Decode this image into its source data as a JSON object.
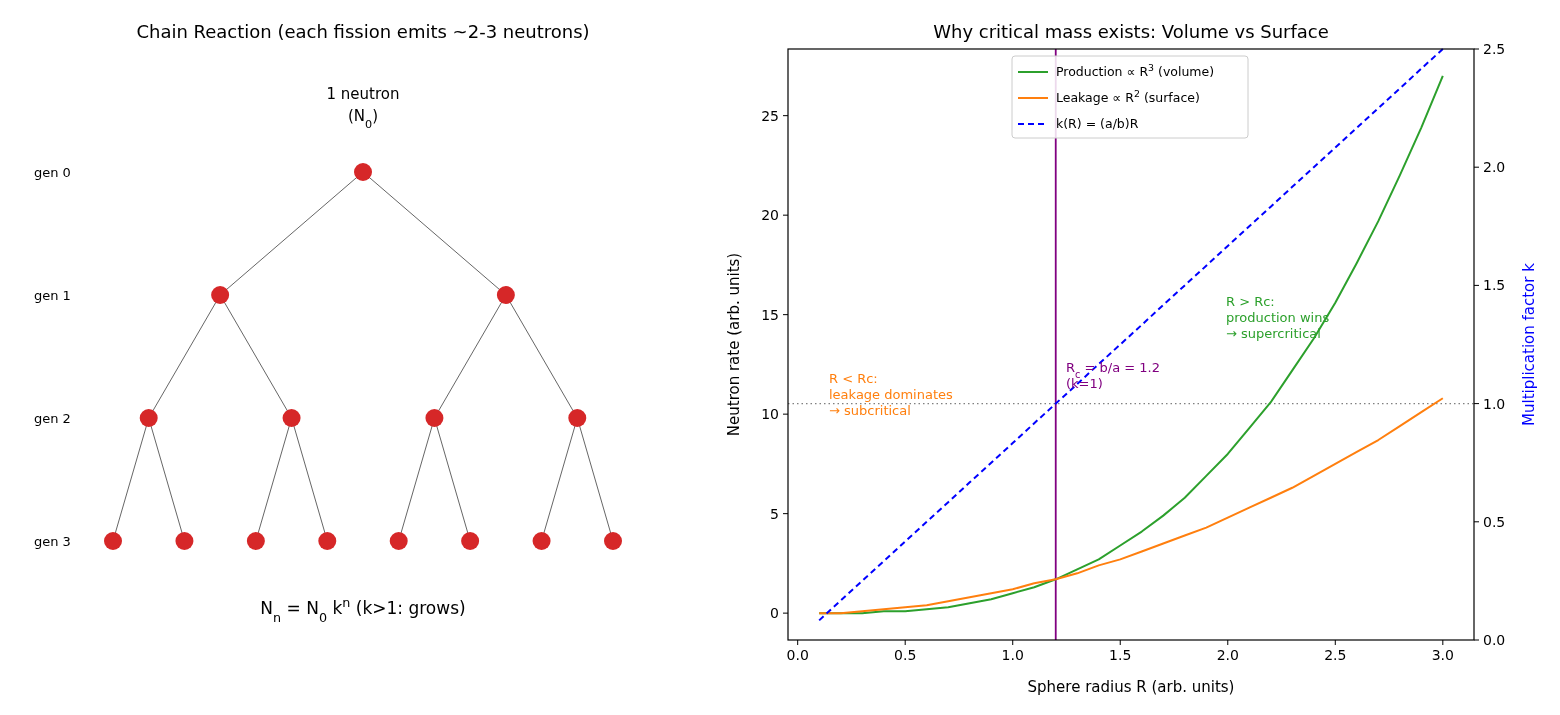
{
  "chart_data": [
    {
      "type": "other",
      "title": "Chain Reaction (each fission emits ~2-3 neutrons)",
      "categories": [
        "gen 0",
        "gen 1",
        "gen 2",
        "gen 3"
      ],
      "annotations": [
        "1 neutron",
        "(N$_{0}$)",
        "N$_{n}$ = N$_{0}$ k$^{n}$  (k>1: grows)"
      ]
    },
    {
      "type": "line",
      "title": "Why critical mass exists: Volume vs Surface",
      "xlabel": "Sphere radius R  (arb. units)",
      "ylabel": "Neutron rate (arb. units)",
      "y2label": "Multiplication factor k",
      "x": [
        0.1,
        0.2,
        0.3,
        0.4,
        0.5,
        0.6,
        0.7,
        0.8,
        0.9,
        1.0,
        1.1,
        1.2,
        1.3,
        1.4,
        1.5,
        1.6,
        1.7,
        1.8,
        1.9,
        2.0,
        2.1,
        2.2,
        2.3,
        2.4,
        2.5,
        2.6,
        2.7,
        2.8,
        2.9,
        3.0
      ],
      "series": [
        {
          "name": "Production ∝ R$^{3}$ (volume)",
          "color": "#2ca02c",
          "values": [
            0,
            0,
            0,
            0.1,
            0.1,
            0.2,
            0.3,
            0.5,
            0.7,
            1,
            1.3,
            1.7,
            2.2,
            2.7,
            3.4,
            4.1,
            4.9,
            5.8,
            6.9,
            8,
            9.3,
            10.6,
            12.2,
            13.8,
            15.6,
            17.6,
            19.7,
            22,
            24.4,
            27
          ]
        },
        {
          "name": "Leakage ∝ R$^{2}$ (surface)",
          "color": "#ff7f0e",
          "values": [
            0,
            0,
            0.1,
            0.2,
            0.3,
            0.4,
            0.6,
            0.8,
            1,
            1.2,
            1.5,
            1.7,
            2,
            2.4,
            2.7,
            3.1,
            3.5,
            3.9,
            4.3,
            4.8,
            5.3,
            5.8,
            6.3,
            6.9,
            7.5,
            8.1,
            8.7,
            9.4,
            10.1,
            10.8
          ]
        },
        {
          "name": "k(R) = (a/b)R",
          "color": "#0000ff",
          "axis": "y2",
          "line_style": "dashed",
          "values": [
            0.083,
            0.167,
            0.25,
            0.333,
            0.417,
            0.5,
            0.583,
            0.667,
            0.75,
            0.833,
            0.917,
            1.0,
            1.083,
            1.167,
            1.25,
            1.333,
            1.417,
            1.5,
            1.583,
            1.667,
            1.75,
            1.833,
            1.917,
            2.0,
            2.083,
            2.167,
            2.25,
            2.333,
            2.417,
            2.5
          ]
        }
      ],
      "xlim": [
        -0.045,
        3.145
      ],
      "xticks": [
        {
          "value": 0,
          "label": "0.0"
        },
        0.5,
        {
          "value": 1,
          "label": "1.0"
        },
        1.5,
        {
          "value": 2,
          "label": "2.0"
        },
        2.5,
        {
          "value": 3,
          "label": "3.0"
        }
      ],
      "ylim": [
        -1.35,
        28.35
      ],
      "yticks": [
        0,
        5,
        10,
        15,
        20,
        25
      ],
      "y2lim": [
        0,
        2.5
      ],
      "y2ticks": [
        {
          "value": 0,
          "label": "0.0"
        },
        0.5,
        {
          "value": 1,
          "label": "1.0"
        },
        1.5,
        {
          "value": 2,
          "label": "2.0"
        },
        2.5
      ],
      "ref_lines": [
        {
          "axis": "x",
          "value": 1.2,
          "color": "#800080"
        },
        {
          "axis": "y2",
          "value": 1.0,
          "color": "#808080",
          "line_style": "dotted"
        }
      ],
      "annotations": [
        "R < Rc:\nleakage dominates\n→ subcritical",
        "R > Rc:\nproduction wins\n→ supercritical",
        "R$_{c}$ = b/a = 1.2\n(k=1)"
      ],
      "legend": "top",
      "grid": false,
      "marker": "none"
    }
  ]
}
